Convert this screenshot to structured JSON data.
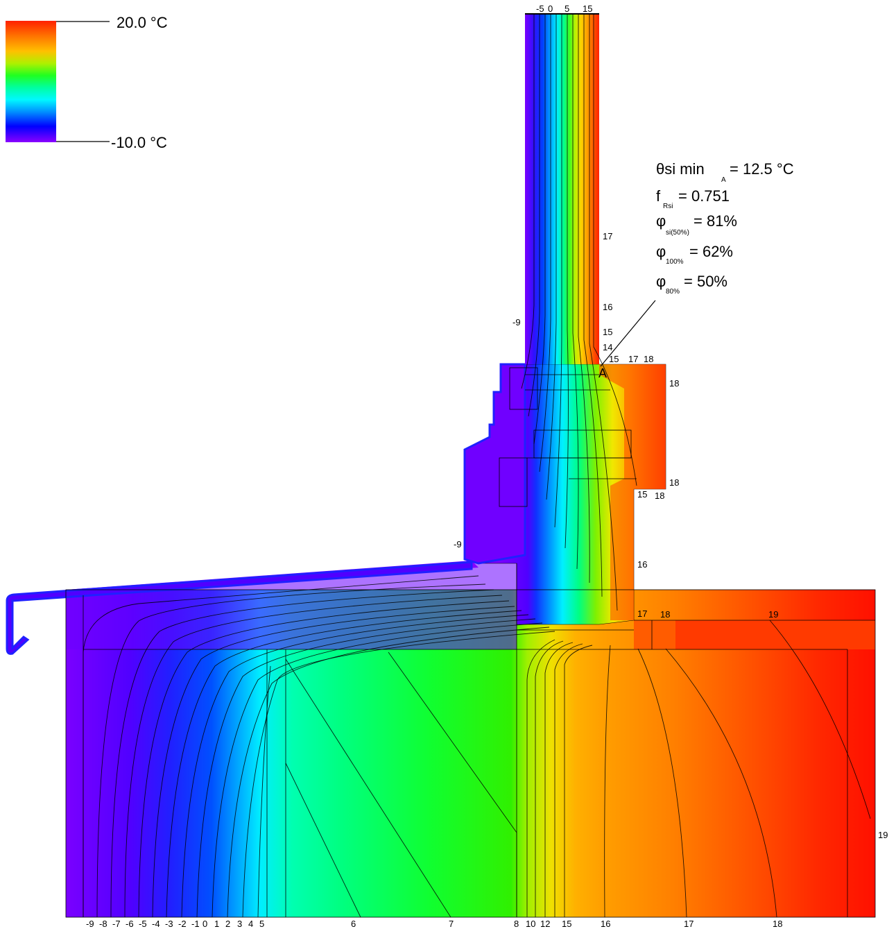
{
  "legend": {
    "max_label": "20.0 °C",
    "min_label": "-10.0 °C",
    "gradient_colors": [
      "#ff2000",
      "#ff6a00",
      "#ffae00",
      "#f7e400",
      "#9df000",
      "#20ff20",
      "#00ffaa",
      "#00ffff",
      "#0080ff",
      "#0000ff",
      "#8000ff"
    ]
  },
  "results": {
    "theta": "θsi min",
    "theta_sub": "A",
    "theta_val": "= 12.5 °C",
    "f": "f",
    "f_sub": "Rsi",
    "f_val": "= 0.751",
    "phi1": "φ",
    "phi1_sub": "si(50%)",
    "phi1_val": "= 81%",
    "phi2": "φ",
    "phi2_sub": "100%",
    "phi2_val": "= 62%",
    "phi3": "φ",
    "phi3_sub": "80%",
    "phi3_val": "= 50%"
  },
  "point_label": "A",
  "top_labels": [
    "-5",
    "0",
    "5",
    "15"
  ],
  "bottom_labels": [
    "-9",
    "-8",
    "-7",
    "-6",
    "-5",
    "-4",
    "-3",
    "-2",
    "-1",
    "0",
    "1",
    "2",
    "3",
    "4",
    "5",
    "6",
    "7",
    "8",
    "10",
    "12",
    "15",
    "16",
    "17",
    "18"
  ],
  "side_labels": {
    "l17": "17",
    "l16a": "16",
    "l15a": "15",
    "l14": "14",
    "l15b": "15",
    "l17b": "17",
    "l18a": "18",
    "l18b": "18",
    "l18c": "18",
    "l15c": "15",
    "l18d": "18",
    "l16b": "16",
    "l17c": "17",
    "l18e": "18",
    "l19a": "19",
    "l19b": "19",
    "lm9a": "-9",
    "lm9b": "-9"
  }
}
